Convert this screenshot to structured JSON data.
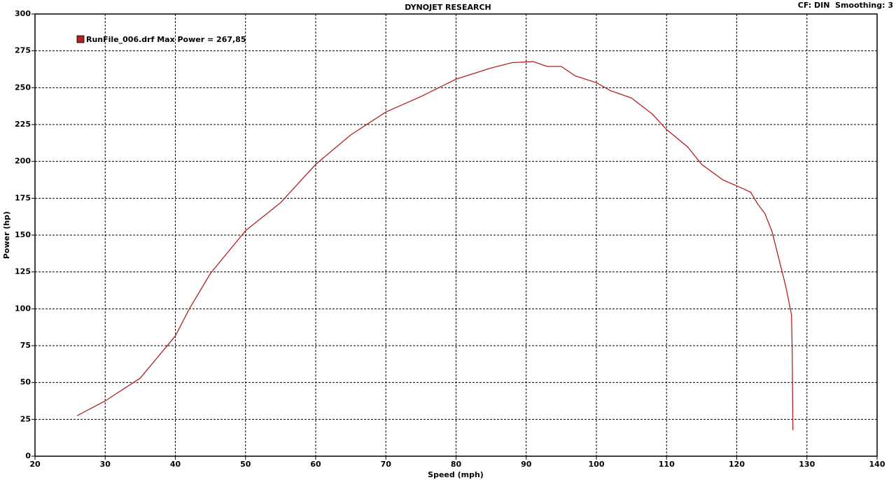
{
  "chart_data": {
    "type": "line",
    "title": "DYNOJET RESEARCH",
    "annotation": "CF: DIN  Smoothing: 3",
    "x_label": "Speed (mph)",
    "y_label": "Power (hp)",
    "x": [
      26,
      30,
      35,
      40,
      42,
      45,
      50,
      55,
      60,
      65,
      70,
      75,
      80,
      85,
      88,
      91,
      93,
      95,
      97,
      100,
      102,
      105,
      108,
      110,
      113,
      115,
      118,
      121,
      122,
      123,
      124,
      125,
      126,
      127,
      127.8,
      127.9,
      128
    ],
    "series": [
      {
        "name": "RunFile_006.drf Max Power = 267,85",
        "color": "#b22222",
        "values": [
          27.5,
          37.5,
          53,
          81.6,
          100,
          124,
          153,
          172,
          198,
          218,
          233.5,
          244,
          255.8,
          263.4,
          267,
          267.7,
          264.4,
          264.4,
          258,
          253.4,
          248,
          243,
          232,
          221.6,
          209.8,
          198,
          187.5,
          181.3,
          179,
          171,
          164.7,
          152.8,
          134,
          115,
          96,
          72,
          17.6
        ]
      }
    ],
    "xlim": [
      20,
      140
    ],
    "ylim": [
      0,
      300
    ],
    "xticks": [
      20,
      30,
      40,
      50,
      60,
      70,
      80,
      90,
      100,
      110,
      120,
      130,
      140
    ],
    "yticks": [
      0,
      25,
      50,
      75,
      100,
      125,
      150,
      175,
      200,
      225,
      250,
      275,
      300
    ],
    "grid": true
  }
}
